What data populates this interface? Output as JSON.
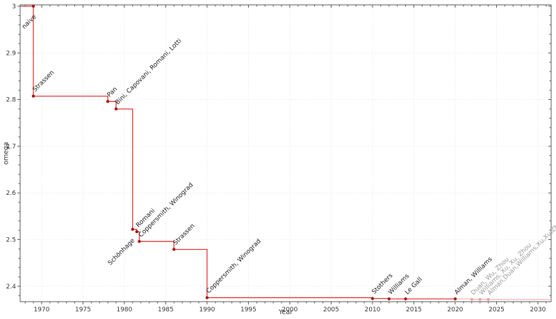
{
  "chart_data": {
    "type": "line",
    "subtype": "step-post",
    "title": "",
    "xlabel": "Year",
    "ylabel": "omega",
    "xlim": [
      1967.4,
      2031.6
    ],
    "ylim": [
      2.367,
      3.003
    ],
    "grid": true,
    "legend": "none",
    "x_major_ticks": [
      1970,
      1975,
      1980,
      1985,
      1990,
      1995,
      2000,
      2005,
      2010,
      2015,
      2020,
      2025,
      2030
    ],
    "x_tick_labels": [
      "1970",
      "1975",
      "1980",
      "1985",
      "1990",
      "1995",
      "2000",
      "2005",
      "2010",
      "2015",
      "2020",
      "2025",
      "2030"
    ],
    "x_minor_step": 1,
    "y_major_ticks": [
      3.0,
      2.9,
      2.8,
      2.7,
      2.6,
      2.5,
      2.4
    ],
    "y_tick_labels": [
      "3",
      "2.9",
      "2.8",
      "2.7",
      "2.6",
      "2.5",
      "2.4"
    ],
    "y_minor_step": 0.02,
    "points": [
      {
        "label": "naive",
        "year": 1969,
        "omega": 3.0,
        "faded": false,
        "label_below": true
      },
      {
        "label": "Strassen",
        "year": 1969,
        "omega": 2.8074,
        "faded": false
      },
      {
        "label": "Pan",
        "year": 1978,
        "omega": 2.796,
        "faded": false
      },
      {
        "label": "Bini, Capovani, Romani, Lotti",
        "year": 1979,
        "omega": 2.78,
        "faded": false
      },
      {
        "label": "Schönhage",
        "year": 1981,
        "omega": 2.522,
        "faded": false,
        "label_below": true
      },
      {
        "label": "Romani",
        "year": 1981.5,
        "omega": 2.517,
        "faded": false
      },
      {
        "label": "Coppersmith, Winograd",
        "year": 1981.8,
        "omega": 2.496,
        "faded": false
      },
      {
        "label": "Strassen",
        "year": 1986,
        "omega": 2.479,
        "faded": false
      },
      {
        "label": "Coppersmith, Winograd",
        "year": 1990,
        "omega": 2.3755,
        "faded": false
      },
      {
        "label": "Stothers",
        "year": 2010,
        "omega": 2.3737,
        "faded": false
      },
      {
        "label": "Williams",
        "year": 2012,
        "omega": 2.3729,
        "faded": false
      },
      {
        "label": "Le Gall",
        "year": 2014,
        "omega": 2.3729,
        "faded": false
      },
      {
        "label": "Alman, Williams",
        "year": 2020,
        "omega": 2.3729,
        "faded": false
      },
      {
        "label": "Duan, Wu, Zhou",
        "year": 2022,
        "omega": 2.3719,
        "faded": true
      },
      {
        "label": "Williams, Xu, Xu, Zhou",
        "year": 2023,
        "omega": 2.3719,
        "faded": true
      },
      {
        "label": "Alman,Duan,Williams,Xu,Xu,Zhou",
        "year": 2024,
        "omega": 2.3716,
        "faded": true
      }
    ],
    "colors": {
      "line": "#e03434",
      "marker": "#a81414",
      "faded_line": "#f5b4b4",
      "faded_marker": "#f09c9c",
      "point_label": "#1a1a1a",
      "faded_point_label": "#999999",
      "grid": "#e3e3e3",
      "axis": "#555555",
      "tick_label": "#333333",
      "background": "#ffffff"
    }
  }
}
